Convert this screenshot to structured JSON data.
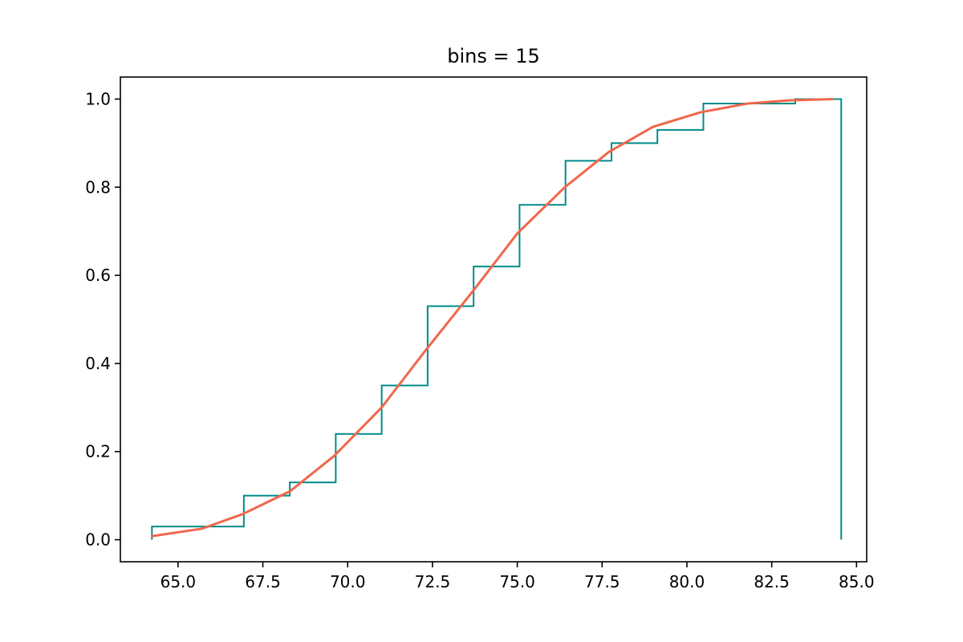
{
  "chart_data": {
    "type": "line",
    "title": "bins = 15",
    "xlabel": "",
    "ylabel": "",
    "xlim": [
      63.3,
      85.3
    ],
    "ylim": [
      -0.05,
      1.05
    ],
    "grid": false,
    "x_ticks": [
      65.0,
      67.5,
      70.0,
      72.5,
      75.0,
      77.5,
      80.0,
      82.5,
      85.0
    ],
    "x_tick_labels": [
      "65.0",
      "67.5",
      "70.0",
      "72.5",
      "75.0",
      "77.5",
      "80.0",
      "82.5",
      "85.0"
    ],
    "y_ticks": [
      0.0,
      0.2,
      0.4,
      0.6,
      0.8,
      1.0
    ],
    "y_tick_labels": [
      "0.0",
      "0.2",
      "0.4",
      "0.6",
      "0.8",
      "1.0"
    ],
    "series": [
      {
        "kind": "cumulative-step-histogram",
        "color": "#008b8b",
        "bin_edges": [
          64.23,
          65.5846,
          66.9392,
          68.2938,
          69.6484,
          71.003,
          72.3576,
          73.7122,
          75.0668,
          76.4214,
          77.776,
          79.1306,
          80.4852,
          81.8398,
          83.1944,
          84.549
        ],
        "values": [
          0.03,
          0.03,
          0.1,
          0.13,
          0.24,
          0.35,
          0.53,
          0.62,
          0.76,
          0.86,
          0.9,
          0.93,
          0.99,
          0.99,
          1.0
        ]
      },
      {
        "kind": "line",
        "color": "#f0674b",
        "x": [
          64.23,
          65.7,
          66.9,
          68.3,
          69.6,
          71.0,
          72.3,
          73.7,
          75.0,
          76.4,
          77.7,
          79.0,
          80.4,
          81.8,
          83.0,
          84.3
        ],
        "y": [
          0.008,
          0.025,
          0.058,
          0.11,
          0.19,
          0.3,
          0.43,
          0.565,
          0.695,
          0.8,
          0.88,
          0.937,
          0.97,
          0.99,
          0.997,
          1.0
        ]
      }
    ]
  }
}
